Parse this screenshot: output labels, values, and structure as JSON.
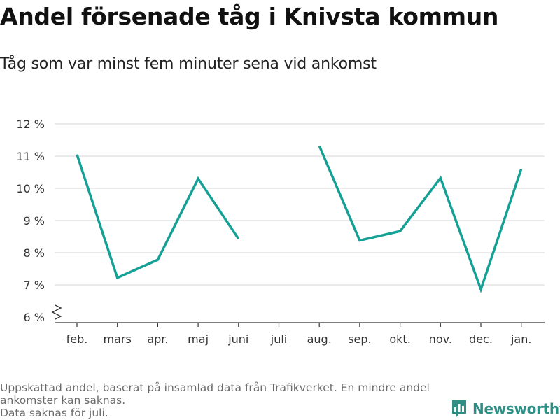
{
  "header": {
    "title": "Andel försenade tåg i Knivsta kommun",
    "subtitle": "Tåg som var minst fem minuter sena vid ankomst"
  },
  "footer": {
    "note_line1": "Uppskattad andel, baserat på insamlad data från Trafikverket. En mindre andel ankomster kan saknas.",
    "note_line2": "Data saknas för juli."
  },
  "brand": {
    "name": "Newsworthy",
    "color": "#2f8f86",
    "icon": "bar-chart-speech-bubble-icon"
  },
  "chart_data": {
    "type": "line",
    "categories": [
      "feb.",
      "mars",
      "apr.",
      "maj",
      "juni",
      "juli",
      "aug.",
      "sep.",
      "okt.",
      "nov.",
      "dec.",
      "jan."
    ],
    "series": [
      {
        "values": [
          11.05,
          7.22,
          7.78,
          10.3,
          8.43,
          null,
          11.32,
          8.38,
          8.67,
          10.32,
          6.86,
          10.6
        ],
        "color": "#15a095"
      }
    ],
    "ylim": [
      6,
      12
    ],
    "yticks": [
      6,
      7,
      8,
      9,
      10,
      11,
      12
    ],
    "ytick_labels": [
      "6 %",
      "7 %",
      "8 %",
      "9 %",
      "10 %",
      "11 %",
      "12 %"
    ],
    "y_axis_break": true,
    "grid": true,
    "legend": "none"
  }
}
